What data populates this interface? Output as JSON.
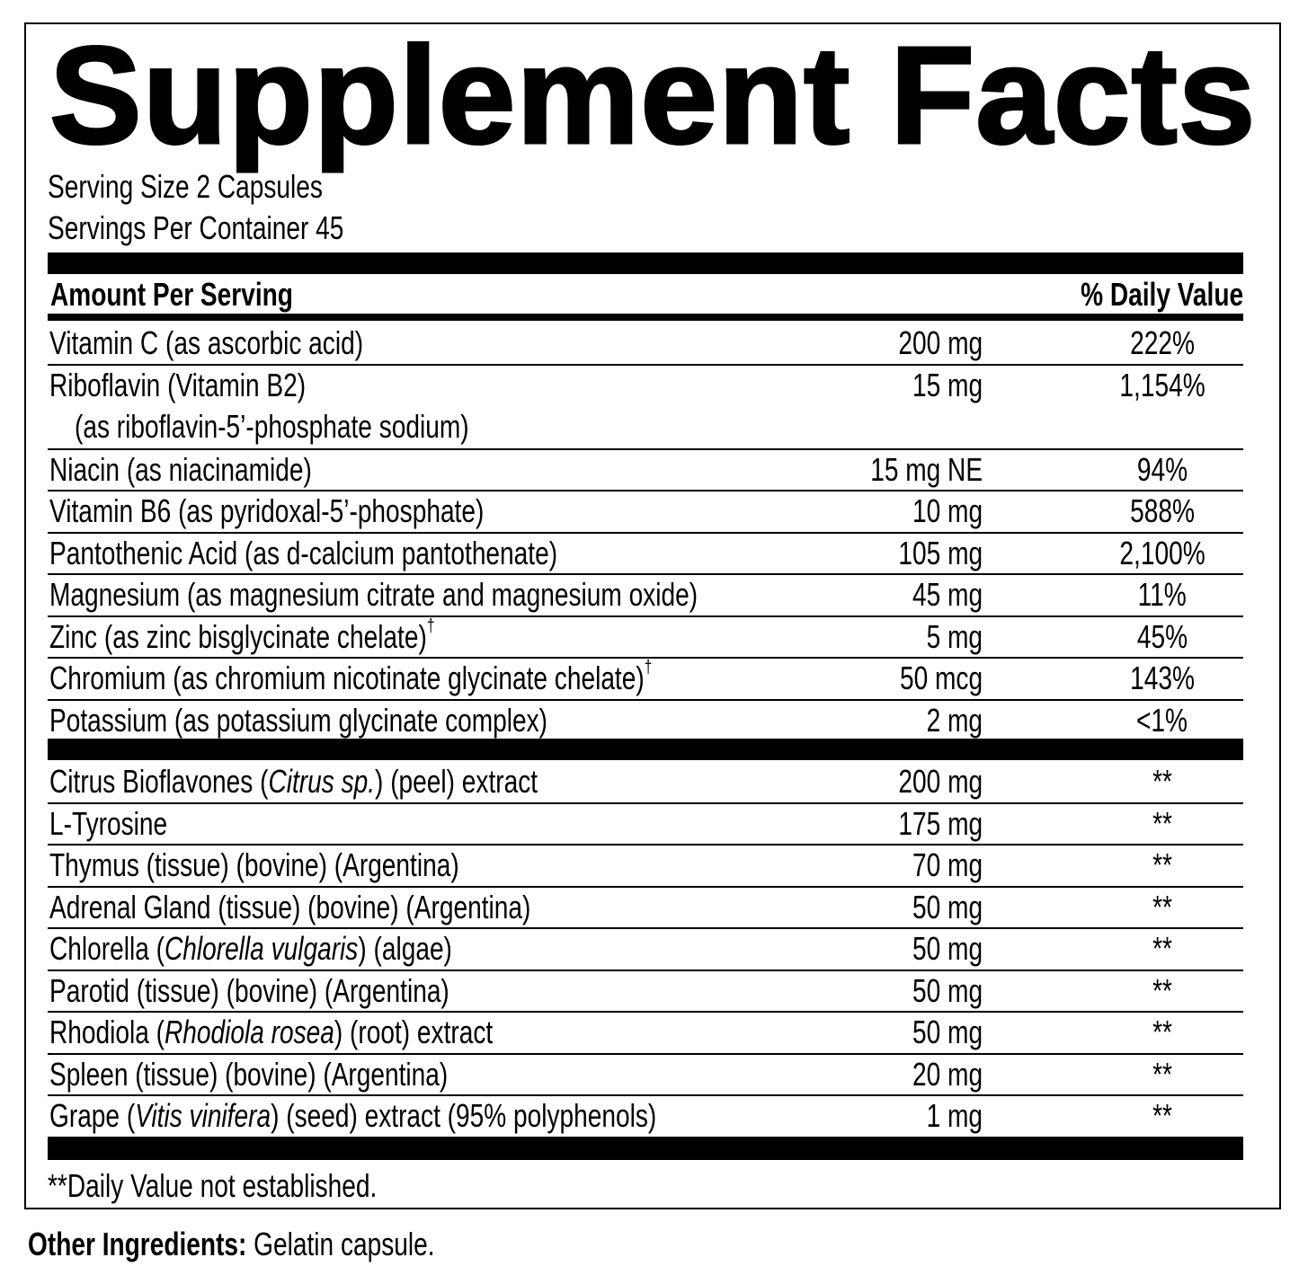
{
  "title": "Supplement Facts",
  "serving_size": "Serving Size 2 Capsules",
  "servings_per_container": "Servings Per Container 45",
  "header": {
    "amount_per_serving": "Amount Per Serving",
    "daily_value": "% Daily Value"
  },
  "nutrients": [
    {
      "name": [
        {
          "t": "Vitamin C (as ascorbic acid)"
        }
      ],
      "amount": "200 mg",
      "dv": "222%"
    },
    {
      "name": [
        {
          "t": "Riboflavin (Vitamin B2)"
        }
      ],
      "sub": "(as riboflavin-5’-phosphate sodium)",
      "amount": "15 mg",
      "dv": "1,154%"
    },
    {
      "name": [
        {
          "t": "Niacin (as niacinamide)"
        }
      ],
      "amount": "15 mg NE",
      "dv": "94%"
    },
    {
      "name": [
        {
          "t": "Vitamin B6 (as pyridoxal-5’-phosphate)"
        }
      ],
      "amount": "10 mg",
      "dv": "588%"
    },
    {
      "name": [
        {
          "t": "Pantothenic Acid (as d-calcium pantothenate)"
        }
      ],
      "amount": "105 mg",
      "dv": "2,100%"
    },
    {
      "name": [
        {
          "t": "Magnesium (as magnesium citrate and magnesium oxide)"
        }
      ],
      "amount": "45 mg",
      "dv": "11%"
    },
    {
      "name": [
        {
          "t": "Zinc (as zinc bisglycinate chelate)"
        },
        {
          "t": "†",
          "sup": true
        }
      ],
      "amount": "5 mg",
      "dv": "45%"
    },
    {
      "name": [
        {
          "t": "Chromium (as chromium nicotinate glycinate chelate)"
        },
        {
          "t": "†",
          "sup": true
        }
      ],
      "amount": "50 mcg",
      "dv": "143%"
    },
    {
      "name": [
        {
          "t": "Potassium (as potassium glycinate complex)"
        }
      ],
      "amount": "2 mg",
      "dv": "<1%"
    }
  ],
  "other_actives": [
    {
      "name": [
        {
          "t": "Citrus Bioflavones ("
        },
        {
          "t": "Citrus sp.",
          "i": true
        },
        {
          "t": ") (peel) extract"
        }
      ],
      "amount": "200 mg",
      "dv": "**"
    },
    {
      "name": [
        {
          "t": "L-Tyrosine"
        }
      ],
      "amount": "175 mg",
      "dv": "**"
    },
    {
      "name": [
        {
          "t": "Thymus (tissue) (bovine) (Argentina)"
        }
      ],
      "amount": "70 mg",
      "dv": "**"
    },
    {
      "name": [
        {
          "t": "Adrenal Gland (tissue) (bovine) (Argentina)"
        }
      ],
      "amount": "50 mg",
      "dv": "**"
    },
    {
      "name": [
        {
          "t": "Chlorella ("
        },
        {
          "t": "Chlorella vulgaris",
          "i": true
        },
        {
          "t": ") (algae)"
        }
      ],
      "amount": "50 mg",
      "dv": "**"
    },
    {
      "name": [
        {
          "t": "Parotid (tissue) (bovine) (Argentina)"
        }
      ],
      "amount": "50 mg",
      "dv": "**"
    },
    {
      "name": [
        {
          "t": "Rhodiola ("
        },
        {
          "t": "Rhodiola rosea",
          "i": true
        },
        {
          "t": ") (root) extract"
        }
      ],
      "amount": "50 mg",
      "dv": "**"
    },
    {
      "name": [
        {
          "t": "Spleen (tissue) (bovine) (Argentina)"
        }
      ],
      "amount": "20 mg",
      "dv": "**"
    },
    {
      "name": [
        {
          "t": "Grape ("
        },
        {
          "t": "Vitis vinifera",
          "i": true
        },
        {
          "t": ") (seed) extract (95% polyphenols)"
        }
      ],
      "amount": "1 mg",
      "dv": "**"
    }
  ],
  "footnote": "**Daily Value not established.",
  "other_ingredients": {
    "label": "Other Ingredients:",
    "value": " Gelatin capsule."
  }
}
